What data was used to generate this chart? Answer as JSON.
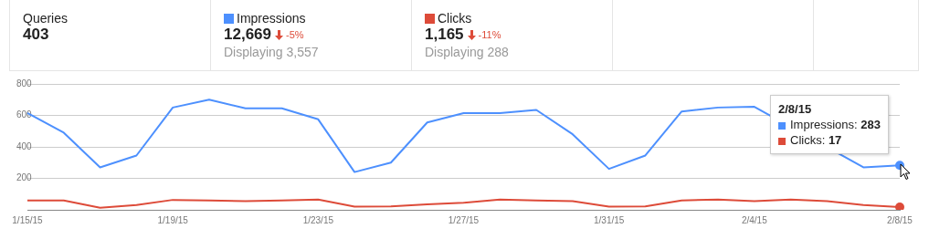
{
  "chart_data": {
    "type": "line",
    "categories": [
      "1/15/15",
      null,
      null,
      null,
      "1/19/15",
      null,
      null,
      null,
      "1/23/15",
      null,
      null,
      null,
      "1/27/15",
      null,
      null,
      null,
      "1/31/15",
      null,
      null,
      null,
      "2/4/15",
      null,
      null,
      null,
      "2/8/15"
    ],
    "series": [
      {
        "name": "Impressions",
        "color": "#4d90fe",
        "values": [
          615,
          490,
          270,
          345,
          650,
          700,
          645,
          645,
          575,
          240,
          300,
          555,
          615,
          615,
          635,
          480,
          260,
          345,
          625,
          650,
          655,
          null,
          null,
          270,
          283
        ]
      },
      {
        "name": "Clicks",
        "color": "#dd4b39",
        "values": [
          60,
          60,
          13,
          30,
          63,
          60,
          55,
          60,
          65,
          20,
          22,
          35,
          45,
          65,
          60,
          55,
          20,
          22,
          60,
          65,
          55,
          65,
          55,
          30,
          17
        ]
      }
    ],
    "ylim": [
      0,
      800
    ],
    "yticks": [
      200,
      400,
      600,
      800
    ],
    "grid": "y",
    "legend": "top",
    "marker": "none",
    "annotations": [
      "Queries",
      "403",
      "12,669",
      "-5%",
      "Displaying 3,557",
      "1,165",
      "-11%",
      "Displaying 288",
      "2/8/15",
      "Impressions: 283",
      "Clicks: 17"
    ]
  }
}
